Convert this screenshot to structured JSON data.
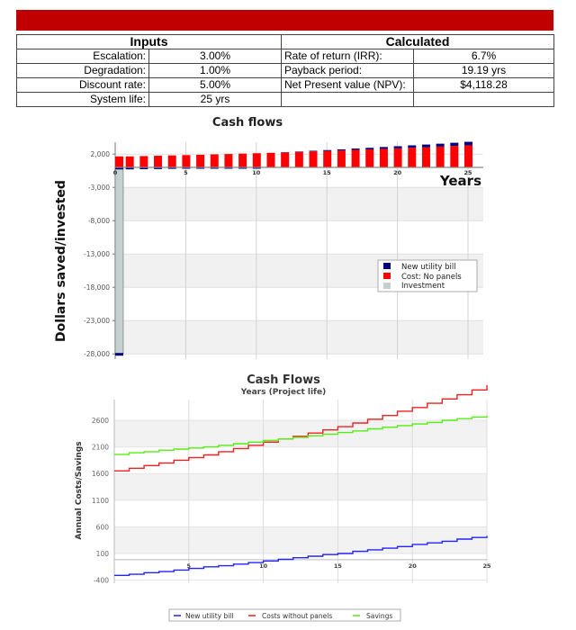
{
  "summary": {
    "inputs_header": "Inputs",
    "calculated_header": "Calculated",
    "inputs": [
      {
        "label": "Escalation:",
        "value": "3.00%"
      },
      {
        "label": "Degradation:",
        "value": "1.00%"
      },
      {
        "label": "Discount rate:",
        "value": "5.00%"
      },
      {
        "label": "System life:",
        "value": "25 yrs"
      }
    ],
    "calculated": [
      {
        "label": "Rate of return (IRR):",
        "value": "6.7%"
      },
      {
        "label": "Payback period:",
        "value": "19.19 yrs"
      },
      {
        "label": "Net Present value (NPV):",
        "value": "$4,118.28"
      },
      {
        "label": "",
        "value": ""
      }
    ]
  },
  "colors": {
    "banner": "#c00000",
    "new_utility_bill_bar": "#000080",
    "cost_no_panels_bar": "#ff0000",
    "investment_bar": "#c4cfcf",
    "line_new_utility_bill": "#2222ff",
    "line_costs_without_panels": "#ee2222",
    "line_savings": "#55ee11"
  },
  "chart_data": [
    {
      "type": "bar",
      "title": "Cash flows",
      "xlabel": "Years",
      "ylabel": "Dollars saved/invested",
      "x_ticks": [
        "0",
        "5",
        "10",
        "15",
        "20",
        "25"
      ],
      "y_ticks": [
        "2,000",
        "-3,000",
        "-8,000",
        "-13,000",
        "-18,000",
        "-23,000",
        "-28,000"
      ],
      "ylim": [
        -28000,
        3000
      ],
      "xlim": [
        0,
        25
      ],
      "grid": true,
      "legend_position": "right-middle",
      "legend": [
        "New utility bill",
        "Cost: No panels",
        "Investment"
      ],
      "categories": [
        0,
        1,
        2,
        3,
        4,
        5,
        6,
        7,
        8,
        9,
        10,
        11,
        12,
        13,
        14,
        15,
        16,
        17,
        18,
        19,
        20,
        21,
        22,
        23,
        24,
        25
      ],
      "series": [
        {
          "name": "Investment",
          "values": [
            -28000,
            0,
            0,
            0,
            0,
            0,
            0,
            0,
            0,
            0,
            0,
            0,
            0,
            0,
            0,
            0,
            0,
            0,
            0,
            0,
            0,
            0,
            0,
            0,
            0,
            0
          ]
        },
        {
          "name": "Cost: No panels",
          "values": [
            1650,
            1650,
            1700,
            1750,
            1800,
            1850,
            1900,
            1960,
            2010,
            2070,
            2130,
            2190,
            2260,
            2330,
            2400,
            2470,
            2540,
            2620,
            2700,
            2780,
            2860,
            2950,
            3030,
            3120,
            3220,
            3320
          ]
        },
        {
          "name": "New utility bill",
          "values": [
            -300,
            -300,
            -270,
            -250,
            -220,
            -190,
            -160,
            -130,
            -100,
            -70,
            -30,
            0,
            30,
            60,
            100,
            130,
            170,
            210,
            240,
            280,
            320,
            360,
            400,
            440,
            480,
            520
          ]
        }
      ]
    },
    {
      "type": "line",
      "title": "Cash Flows",
      "subtitle": "Years (Project life)",
      "xlabel": "",
      "ylabel": "Annual Costs/Savings",
      "x_ticks": [
        "5",
        "10",
        "15",
        "20",
        "25"
      ],
      "y_ticks": [
        "2600",
        "2100",
        "1600",
        "1100",
        "600",
        "100",
        "-400"
      ],
      "ylim": [
        -400,
        3000
      ],
      "xlim": [
        0,
        25
      ],
      "grid": true,
      "legend_position": "bottom",
      "legend": [
        "New utility bill",
        "Costs without panels",
        "Savings"
      ],
      "x": [
        0,
        1,
        2,
        3,
        4,
        5,
        6,
        7,
        8,
        9,
        10,
        11,
        12,
        13,
        14,
        15,
        16,
        17,
        18,
        19,
        20,
        21,
        22,
        23,
        24,
        25
      ],
      "series": [
        {
          "name": "New utility bill",
          "values": [
            -310,
            -290,
            -260,
            -240,
            -210,
            -180,
            -150,
            -130,
            -100,
            -70,
            -40,
            -10,
            20,
            50,
            80,
            100,
            140,
            170,
            200,
            230,
            270,
            300,
            330,
            370,
            400,
            430
          ]
        },
        {
          "name": "Costs without panels",
          "values": [
            1650,
            1700,
            1750,
            1800,
            1850,
            1900,
            1950,
            2010,
            2070,
            2130,
            2190,
            2250,
            2300,
            2360,
            2420,
            2480,
            2550,
            2620,
            2690,
            2770,
            2840,
            2920,
            3000,
            3080,
            3170,
            3260
          ]
        },
        {
          "name": "Savings",
          "values": [
            1960,
            1990,
            2010,
            2040,
            2060,
            2080,
            2100,
            2130,
            2160,
            2190,
            2220,
            2250,
            2280,
            2310,
            2340,
            2370,
            2400,
            2440,
            2470,
            2500,
            2530,
            2560,
            2600,
            2630,
            2660,
            2690
          ]
        }
      ]
    }
  ]
}
